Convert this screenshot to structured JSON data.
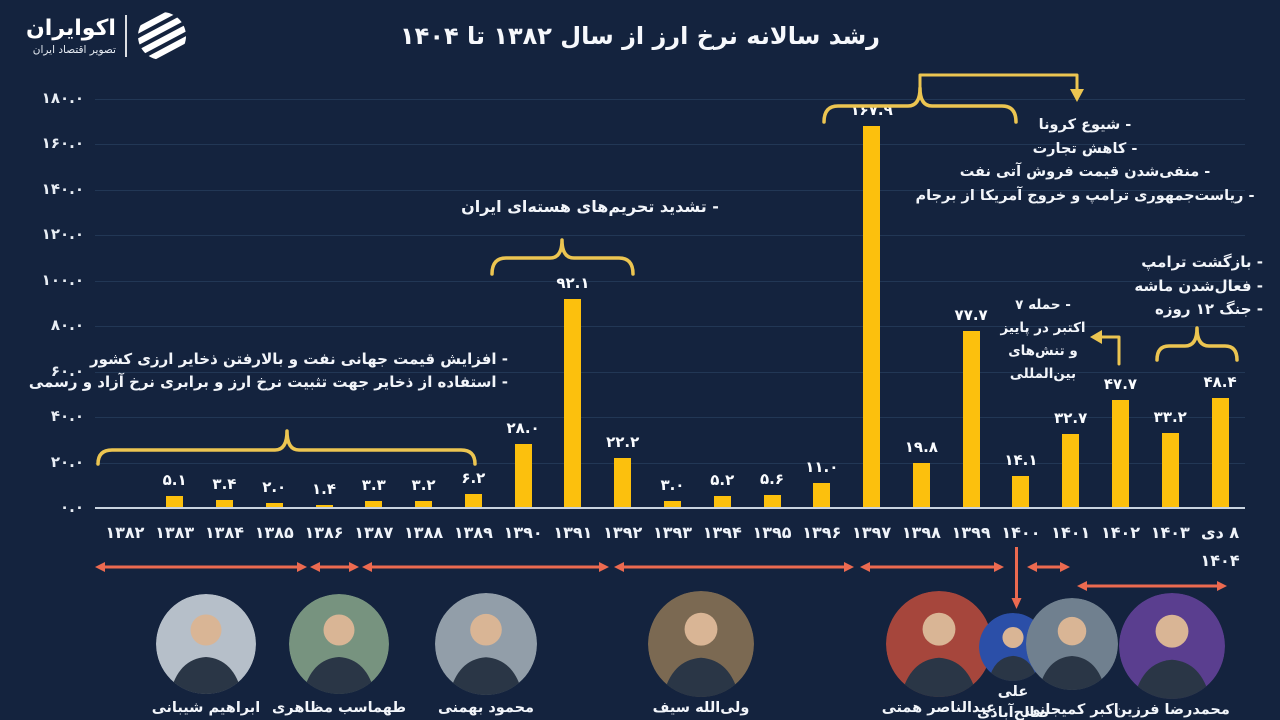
{
  "brand": {
    "name": "اکوایران",
    "tagline": "تصویر اقتصاد ایران"
  },
  "title": "رشد سالانه نرخ ارز از سال ۱۳۸۲ تا ۱۴۰۴",
  "colors": {
    "background": "#14233E",
    "bar": "#FCC00D",
    "brace_yellow": "#ECC551",
    "arrow_red": "#EC6A50",
    "text": "#F4F7FB",
    "grid": "#223755",
    "axis_line": "#C9D3DF"
  },
  "chart_data": {
    "type": "bar",
    "title": "رشد سالانه نرخ ارز از سال ۱۳۸۲ تا ۱۴۰۴",
    "categories": [
      "۱۳۸۲",
      "۱۳۸۳",
      "۱۳۸۴",
      "۱۳۸۵",
      "۱۳۸۶",
      "۱۳۸۷",
      "۱۳۸۸",
      "۱۳۸۹",
      "۱۳۹۰",
      "۱۳۹۱",
      "۱۳۹۲",
      "۱۳۹۳",
      "۱۳۹۴",
      "۱۳۹۵",
      "۱۳۹۶",
      "۱۳۹۷",
      "۱۳۹۸",
      "۱۳۹۹",
      "۱۴۰۰",
      "۱۴۰۱",
      "۱۴۰۲",
      "۱۴۰۳",
      "۸ دی"
    ],
    "last_category_line2": "۱۴۰۴",
    "values": [
      null,
      5.1,
      3.4,
      2.0,
      1.4,
      3.3,
      3.2,
      6.2,
      28.0,
      92.1,
      22.2,
      3.0,
      5.2,
      5.6,
      11.0,
      167.9,
      19.8,
      77.7,
      14.1,
      32.7,
      47.7,
      33.2,
      48.4
    ],
    "value_labels": [
      "",
      "۵.۱",
      "۳.۴",
      "۲.۰",
      "۱.۴",
      "۳.۳",
      "۳.۲",
      "۶.۲",
      "۲۸.۰",
      "۹۲.۱",
      "۲۲.۲",
      "۳.۰",
      "۵.۲",
      "۵.۶",
      "۱۱.۰",
      "۱۶۷.۹",
      "۱۹.۸",
      "۷۷.۷",
      "۱۴.۱",
      "۳۲.۷",
      "۴۷.۷",
      "۳۳.۲",
      "۴۸.۴"
    ],
    "ylim": [
      0,
      180
    ],
    "yticks": [
      0,
      20,
      40,
      60,
      80,
      100,
      120,
      140,
      160,
      180
    ],
    "ytick_labels": [
      "۰.۰",
      "۲۰.۰",
      "۴۰.۰",
      "۶۰.۰",
      "۸۰.۰",
      "۱۰۰.۰",
      "۱۲۰.۰",
      "۱۴۰.۰",
      "۱۶۰.۰",
      "۱۸۰.۰"
    ],
    "grid": true,
    "legend_position": "none"
  },
  "annotations": {
    "oil_reserves": {
      "lines": [
        "- افزایش قیمت جهانی نفت و بالارفتن ذخایر ارزی کشور",
        "- استفاده از ذخایر جهت تثبیت نرخ ارز و برابری نرخ آزاد و رسمی"
      ]
    },
    "sanctions": {
      "text": "- تشدید تحریم‌های هسته‌ای ایران"
    },
    "covid": {
      "lines": [
        "- شیوع کرونا",
        "- کاهش تجارت",
        "- منفی‌شدن قیمت فروش آتی نفت",
        "- ریاست‌جمهوری ترامپ و خروج آمریکا از برجام"
      ]
    },
    "october_attack": {
      "lines": [
        "- حمله ۷",
        "اکتبر در پاییز",
        "و تنش‌های",
        "بین‌المللی"
      ]
    },
    "trump_return": {
      "lines": [
        "- بازگشت ترامپ",
        "- فعال‌شدن ماشه",
        "- جنگ ۱۲ روزه"
      ]
    }
  },
  "people": [
    {
      "name_lines": [
        "ابراهیم شیبانی"
      ],
      "color": "#B6BFC9"
    },
    {
      "name_lines": [
        "طهماسب مظاهری"
      ],
      "color": "#77937F"
    },
    {
      "name_lines": [
        "محمود بهمنی"
      ],
      "color": "#929EA9"
    },
    {
      "name_lines": [
        "ولی‌الله سیف"
      ],
      "color": "#7B6952"
    },
    {
      "name_lines": [
        "عبدالناصر همتی"
      ],
      "color": "#A6463C"
    },
    {
      "name_lines": [
        "علی",
        "صالح‌آبادی"
      ],
      "color": "#2B4FA8"
    },
    {
      "name_lines": [
        "اکبر کمیجانی"
      ],
      "color": "#70808F"
    },
    {
      "name_lines": [
        "محمدرضا فرزین"
      ],
      "color": "#5A3E8F"
    }
  ]
}
